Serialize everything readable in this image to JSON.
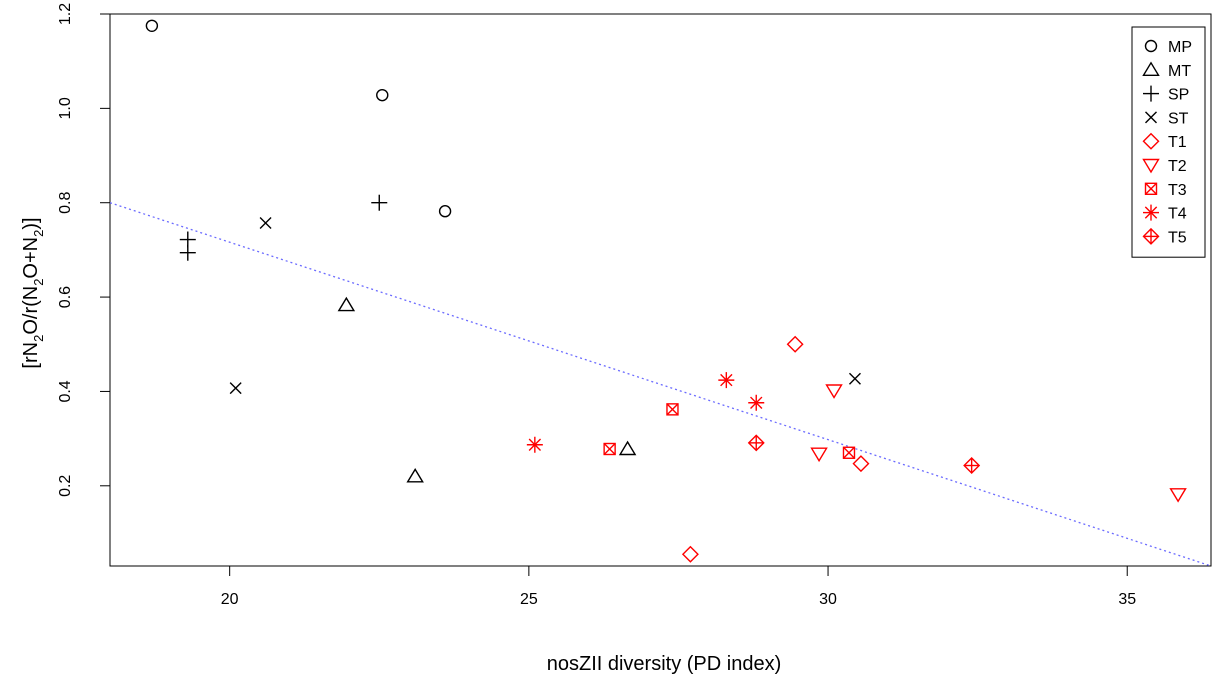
{
  "chart_data": {
    "type": "scatter",
    "title": "",
    "xlabel": "nosZII diversity (PD index)",
    "ylabel_parts": {
      "open": "[rN",
      "sub1": "2",
      "mid1": "O/r(N",
      "sub2": "2",
      "mid2": "O+N",
      "sub3": "2",
      "close": ")]"
    },
    "xlim": [
      18,
      36.4
    ],
    "ylim": [
      0.03,
      1.2
    ],
    "xticks": [
      20,
      25,
      30,
      35
    ],
    "yticks": [
      0.2,
      0.4,
      0.6,
      0.8,
      1.0,
      1.2
    ],
    "ytick_labels": [
      "0.2",
      "0.4",
      "0.6",
      "0.8",
      "1.0",
      "1.2"
    ],
    "legend_position": "top-right",
    "trendline": {
      "x1": 18,
      "y1": 0.8,
      "x2": 36.4,
      "y2": 0.03,
      "color": "#6b6bff",
      "style": "dotted"
    },
    "series": [
      {
        "name": "MP",
        "color": "#000000",
        "marker": "circle",
        "points": [
          [
            18.7,
            1.175
          ],
          [
            22.55,
            1.028
          ],
          [
            23.6,
            0.782
          ]
        ]
      },
      {
        "name": "MT",
        "color": "#000000",
        "marker": "triangle-up",
        "points": [
          [
            21.95,
            0.583
          ],
          [
            23.1,
            0.22
          ],
          [
            26.65,
            0.278
          ]
        ]
      },
      {
        "name": "SP",
        "color": "#000000",
        "marker": "plus",
        "points": [
          [
            19.3,
            0.722
          ],
          [
            19.3,
            0.694
          ],
          [
            22.5,
            0.8
          ]
        ]
      },
      {
        "name": "ST",
        "color": "#000000",
        "marker": "cross",
        "points": [
          [
            20.6,
            0.757
          ],
          [
            20.1,
            0.407
          ],
          [
            30.45,
            0.427
          ]
        ]
      },
      {
        "name": "T1",
        "color": "#ff0000",
        "marker": "diamond",
        "points": [
          [
            29.45,
            0.5
          ],
          [
            30.55,
            0.247
          ],
          [
            27.7,
            0.055
          ]
        ]
      },
      {
        "name": "T2",
        "color": "#ff0000",
        "marker": "triangle-down",
        "points": [
          [
            30.1,
            0.402
          ],
          [
            29.85,
            0.268
          ],
          [
            35.85,
            0.182
          ]
        ]
      },
      {
        "name": "T3",
        "color": "#ff0000",
        "marker": "square-x",
        "points": [
          [
            27.4,
            0.362
          ],
          [
            26.35,
            0.278
          ],
          [
            30.35,
            0.27
          ]
        ]
      },
      {
        "name": "T4",
        "color": "#ff0000",
        "marker": "asterisk",
        "points": [
          [
            25.1,
            0.287
          ],
          [
            28.3,
            0.424
          ],
          [
            28.8,
            0.376
          ]
        ]
      },
      {
        "name": "T5",
        "color": "#ff0000",
        "marker": "diamond-plus",
        "points": [
          [
            28.8,
            0.291
          ],
          [
            32.4,
            0.243
          ]
        ]
      }
    ]
  }
}
